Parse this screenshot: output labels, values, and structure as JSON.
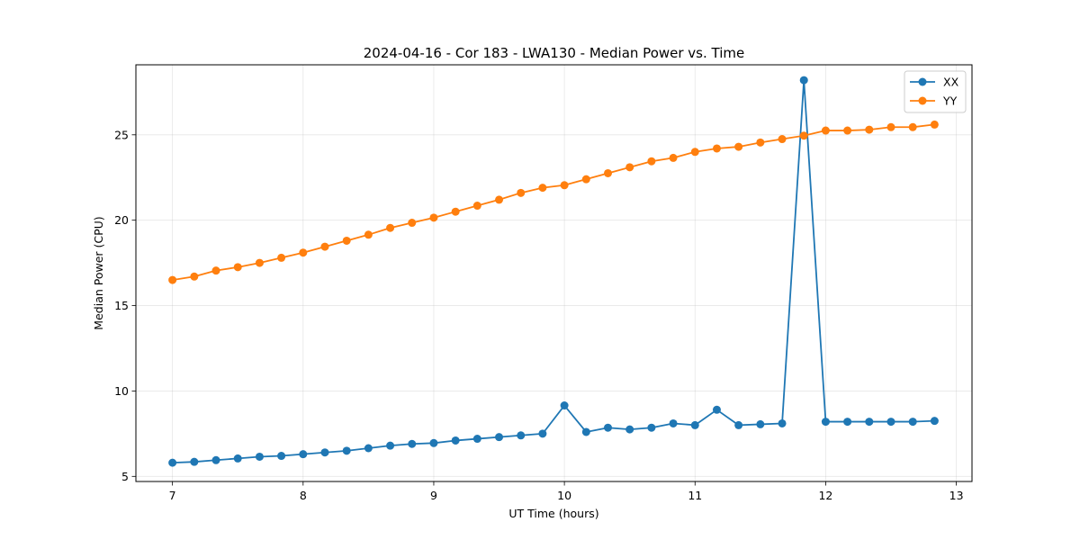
{
  "chart_data": {
    "type": "line",
    "title": "2024-04-16 - Cor 183 - LWA130 - Median Power vs. Time",
    "xlabel": "UT Time (hours)",
    "ylabel": "Median Power (CPU)",
    "xlim": [
      6.72,
      13.12
    ],
    "ylim": [
      4.7,
      29.1
    ],
    "xticks": [
      7,
      8,
      9,
      10,
      11,
      12,
      13
    ],
    "yticks": [
      5,
      10,
      15,
      20,
      25
    ],
    "grid": true,
    "legend_position": "top-right",
    "x": [
      7.0,
      7.1667,
      7.3333,
      7.5,
      7.6667,
      7.8333,
      8.0,
      8.1667,
      8.3333,
      8.5,
      8.6667,
      8.8333,
      9.0,
      9.1667,
      9.3333,
      9.5,
      9.6667,
      9.8333,
      10.0,
      10.1667,
      10.3333,
      10.5,
      10.6667,
      10.8333,
      11.0,
      11.1667,
      11.3333,
      11.5,
      11.6667,
      11.8333,
      12.0,
      12.1667,
      12.3333,
      12.5,
      12.6667,
      12.8333
    ],
    "series": [
      {
        "name": "XX",
        "color": "#1f77b4",
        "values": [
          5.8,
          5.85,
          5.95,
          6.05,
          6.15,
          6.2,
          6.3,
          6.4,
          6.5,
          6.65,
          6.8,
          6.9,
          6.95,
          7.1,
          7.2,
          7.3,
          7.4,
          7.5,
          9.15,
          7.6,
          7.85,
          7.75,
          7.85,
          8.1,
          8.0,
          8.9,
          8.0,
          8.05,
          8.1,
          28.2,
          8.2,
          8.2,
          8.2,
          8.2,
          8.2,
          8.25
        ]
      },
      {
        "name": "YY",
        "color": "#ff7f0e",
        "values": [
          16.5,
          16.7,
          17.05,
          17.25,
          17.5,
          17.8,
          18.1,
          18.45,
          18.8,
          19.15,
          19.55,
          19.85,
          20.15,
          20.5,
          20.85,
          21.2,
          21.6,
          21.9,
          22.05,
          22.4,
          22.75,
          23.1,
          23.45,
          23.65,
          24.0,
          24.2,
          24.3,
          24.55,
          24.75,
          24.95,
          25.25,
          25.25,
          25.3,
          25.45,
          25.45,
          25.6
        ]
      }
    ]
  }
}
